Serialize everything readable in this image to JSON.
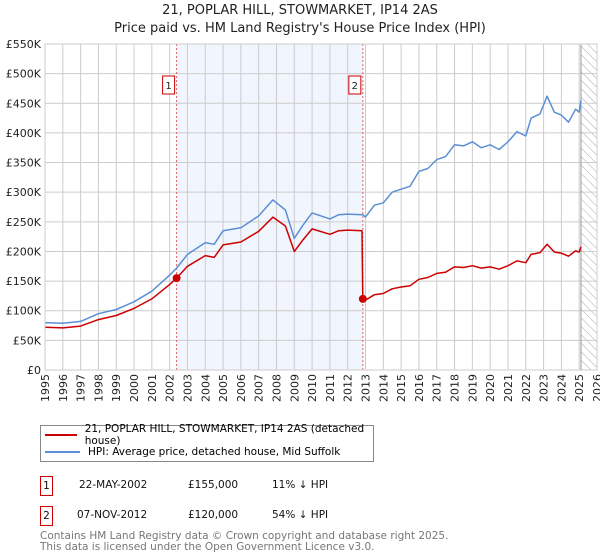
{
  "chart_data": {
    "type": "line",
    "title": "21, POPLAR HILL, STOWMARKET, IP14 2AS",
    "subtitle": "Price paid vs. HM Land Registry's House Price Index (HPI)",
    "xlim": [
      1995,
      2026
    ],
    "ylim": [
      0,
      550000
    ],
    "x_ticks": [
      "1995",
      "1996",
      "1997",
      "1998",
      "1999",
      "2000",
      "2001",
      "2002",
      "2003",
      "2004",
      "2005",
      "2006",
      "2007",
      "2008",
      "2009",
      "2010",
      "2011",
      "2012",
      "2013",
      "2014",
      "2015",
      "2016",
      "2017",
      "2018",
      "2019",
      "2020",
      "2021",
      "2022",
      "2023",
      "2024",
      "2025",
      "2026"
    ],
    "y_ticks": [
      {
        "v": 0,
        "label": "£0"
      },
      {
        "v": 50000,
        "label": "£50K"
      },
      {
        "v": 100000,
        "label": "£100K"
      },
      {
        "v": 150000,
        "label": "£150K"
      },
      {
        "v": 200000,
        "label": "£200K"
      },
      {
        "v": 250000,
        "label": "£250K"
      },
      {
        "v": 300000,
        "label": "£300K"
      },
      {
        "v": 350000,
        "label": "£350K"
      },
      {
        "v": 400000,
        "label": "£400K"
      },
      {
        "v": 450000,
        "label": "£450K"
      },
      {
        "v": 500000,
        "label": "£500K"
      },
      {
        "v": 550000,
        "label": "£550K"
      }
    ],
    "grid": true,
    "shaded_range": [
      2002.39,
      2012.85
    ],
    "forecast_hatch_from": 2025.1,
    "series": [
      {
        "name": "21, POPLAR HILL, STOWMARKET, IP14 2AS (detached house)",
        "color": "#cc0000",
        "x": [
          1995,
          1996,
          1997,
          1998,
          1999,
          2000,
          2001,
          2002,
          2002.39,
          2003,
          2004,
          2004.5,
          2005,
          2006,
          2007,
          2007.8,
          2008.5,
          2009,
          2009.5,
          2010,
          2011,
          2011.5,
          2012,
          2012.8,
          2012.85,
          2013,
          2013.5,
          2014,
          2014.5,
          2015,
          2015.5,
          2016,
          2016.5,
          2017,
          2017.5,
          2018,
          2018.5,
          2019,
          2019.5,
          2020,
          2020.5,
          2021,
          2021.5,
          2022,
          2022.3,
          2022.8,
          2023.2,
          2023.6,
          2024,
          2024.4,
          2024.8,
          2025,
          2025.1
        ],
        "y": [
          72000,
          71000,
          74000,
          85000,
          92000,
          104000,
          120000,
          144000,
          155000,
          175000,
          193000,
          190000,
          211000,
          216000,
          234000,
          258000,
          243000,
          200000,
          220000,
          238000,
          229000,
          235000,
          236000,
          235000,
          120000,
          118000,
          127000,
          129000,
          137000,
          140000,
          142000,
          153000,
          156000,
          163000,
          165000,
          174000,
          173000,
          176000,
          172000,
          174000,
          170000,
          176000,
          184000,
          181000,
          195000,
          198000,
          212000,
          199000,
          197000,
          192000,
          201000,
          199000,
          208000
        ]
      },
      {
        "name": "HPI: Average price, detached house, Mid Suffolk",
        "color": "#5b8fd4",
        "x": [
          1995,
          1996,
          1997,
          1998,
          1999,
          2000,
          2001,
          2002,
          2002.39,
          2003,
          2004,
          2004.5,
          2005,
          2006,
          2007,
          2007.8,
          2008.5,
          2009,
          2009.5,
          2010,
          2011,
          2011.5,
          2012,
          2012.8,
          2012.85,
          2013,
          2013.5,
          2014,
          2014.5,
          2015,
          2015.5,
          2016,
          2016.5,
          2017,
          2017.5,
          2018,
          2018.5,
          2019,
          2019.5,
          2020,
          2020.5,
          2021,
          2021.5,
          2022,
          2022.3,
          2022.8,
          2023.2,
          2023.6,
          2024,
          2024.4,
          2024.8,
          2025,
          2025.1
        ],
        "y": [
          80000,
          79000,
          82000,
          95000,
          102000,
          115000,
          133000,
          160000,
          172000,
          195000,
          215000,
          212000,
          235000,
          240000,
          260000,
          287000,
          270000,
          222000,
          245000,
          265000,
          255000,
          262000,
          263000,
          262000,
          262000,
          258000,
          278000,
          282000,
          300000,
          305000,
          310000,
          335000,
          340000,
          355000,
          360000,
          380000,
          378000,
          385000,
          375000,
          380000,
          372000,
          385000,
          402000,
          395000,
          425000,
          432000,
          462000,
          435000,
          430000,
          418000,
          440000,
          435000,
          455000
        ]
      }
    ],
    "annotations": [
      {
        "label": "1",
        "x": 2002.39,
        "y": 155000
      },
      {
        "label": "2",
        "x": 2012.85,
        "y": 120000
      }
    ]
  },
  "legend": {
    "property": "21, POPLAR HILL, STOWMARKET, IP14 2AS (detached house)",
    "hpi": "HPI: Average price, detached house, Mid Suffolk"
  },
  "sales": [
    {
      "num": "1",
      "date": "22-MAY-2002",
      "price": "£155,000",
      "hpi": "11% ↓ HPI"
    },
    {
      "num": "2",
      "date": "07-NOV-2012",
      "price": "£120,000",
      "hpi": "54% ↓ HPI"
    }
  ],
  "footer": {
    "line1": "Contains HM Land Registry data © Crown copyright and database right 2025.",
    "line2": "This data is licensed under the Open Government Licence v3.0."
  }
}
